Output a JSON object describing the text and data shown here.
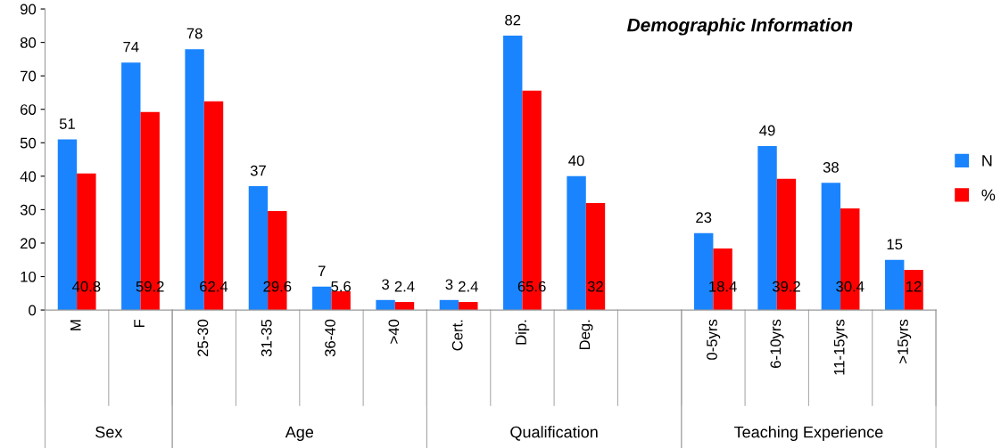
{
  "chart_data": {
    "type": "bar",
    "title": "Demographic Information",
    "categories": [
      "M",
      "F",
      "25-30",
      "31-35",
      "36-40",
      ">40",
      "Cert.",
      "Dip.",
      "Deg.",
      null,
      "0-5yrs",
      "6-10yrs",
      "11-15yrs",
      ">15yrs"
    ],
    "series": [
      {
        "name": "N",
        "color": "#1a84ff",
        "values": [
          51,
          74,
          78,
          37,
          7,
          3,
          3,
          82,
          40,
          null,
          23,
          49,
          38,
          15
        ]
      },
      {
        "name": "%",
        "color": "#ff0000",
        "values": [
          40.8,
          59.2,
          62.4,
          29.6,
          5.6,
          2.4,
          2.4,
          65.6,
          32,
          null,
          18.4,
          39.2,
          30.4,
          12
        ]
      }
    ],
    "annotations": [
      "Sex",
      "Age",
      "Qualification",
      "Teaching Experience"
    ],
    "ylim": [
      0,
      90
    ],
    "yticks": [
      0,
      10,
      20,
      30,
      40,
      50,
      60,
      70,
      80,
      90
    ],
    "data_labels": true,
    "grid": false,
    "legend": "right"
  }
}
